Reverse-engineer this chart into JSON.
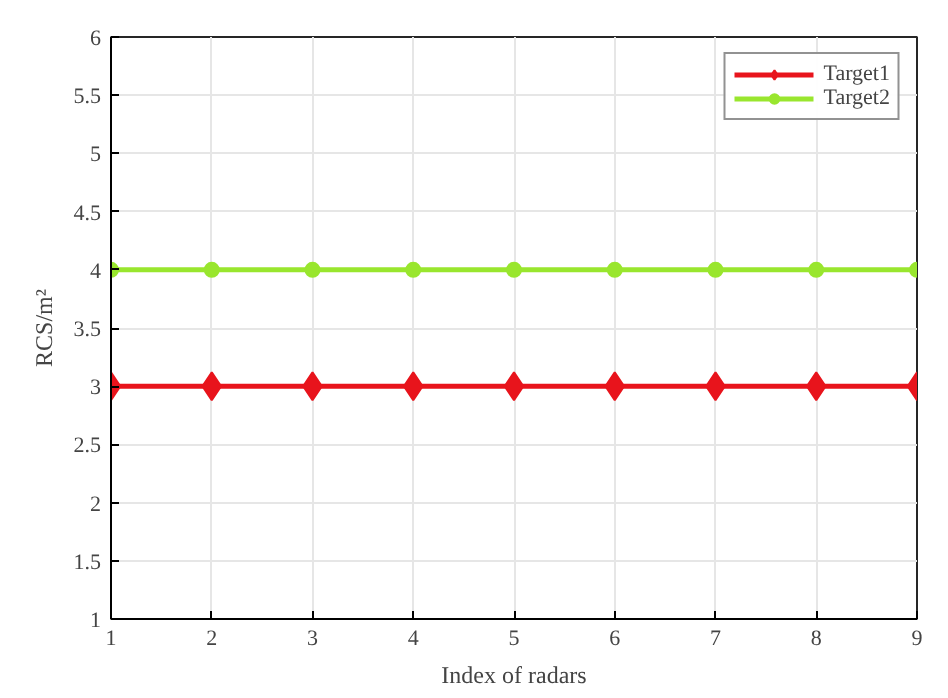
{
  "chart_data": {
    "type": "line",
    "xlabel": "Index of radars",
    "ylabel": "RCS/m²",
    "x": [
      1,
      2,
      3,
      4,
      5,
      6,
      7,
      8,
      9
    ],
    "series": [
      {
        "name": "Target1",
        "color": "#e8141c",
        "marker": "diamond",
        "values": [
          3,
          3,
          3,
          3,
          3,
          3,
          3,
          3,
          3
        ]
      },
      {
        "name": "Target2",
        "color": "#99e62e",
        "marker": "circle",
        "values": [
          4,
          4,
          4,
          4,
          4,
          4,
          4,
          4,
          4
        ]
      }
    ],
    "xlim": [
      1,
      9
    ],
    "xticks": [
      1,
      2,
      3,
      4,
      5,
      6,
      7,
      8,
      9
    ],
    "ylim": [
      1,
      6
    ],
    "yticks": [
      1,
      {
        "value": 1.5,
        "label": "1.5"
      },
      2,
      {
        "value": 2.5,
        "label": "2.5"
      },
      3,
      {
        "value": 3.5,
        "label": "3.5"
      },
      4,
      {
        "value": 4.5,
        "label": "4.5"
      },
      5,
      {
        "value": 5.5,
        "label": "5.5"
      },
      6
    ],
    "grid": true,
    "legend": "top right",
    "line_style": "solid"
  }
}
